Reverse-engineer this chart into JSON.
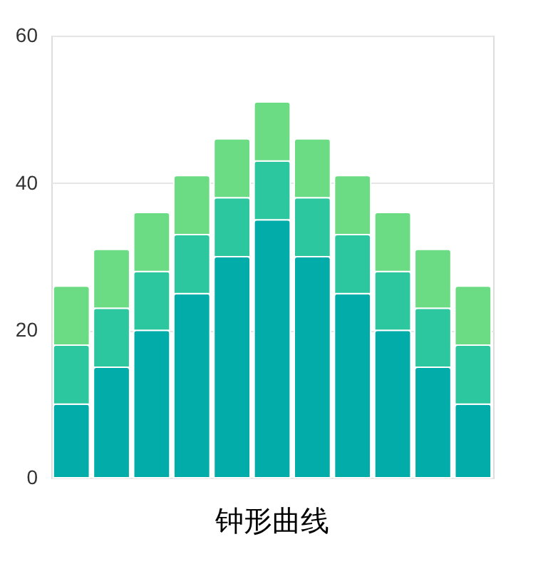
{
  "chart_data": {
    "type": "bar",
    "title": "钟形曲线",
    "stacked": true,
    "categories": [
      null,
      null,
      null,
      null,
      null,
      null,
      null,
      null,
      null,
      null,
      null
    ],
    "series": [
      {
        "color": "#02aca8",
        "values": [
          10,
          15,
          20,
          25,
          30,
          35,
          30,
          25,
          20,
          15,
          10
        ]
      },
      {
        "color": "#2cc79e",
        "values": [
          8,
          8,
          8,
          8,
          8,
          8,
          8,
          8,
          8,
          8,
          8
        ]
      },
      {
        "color": "#6cdc84",
        "values": [
          8,
          8,
          8,
          8,
          8,
          8,
          8,
          8,
          8,
          8,
          8
        ]
      }
    ],
    "ylim": [
      0,
      60
    ],
    "yticks": [
      0,
      20,
      40,
      60
    ],
    "grid": "y",
    "legend": false,
    "tick_labels": "y"
  }
}
